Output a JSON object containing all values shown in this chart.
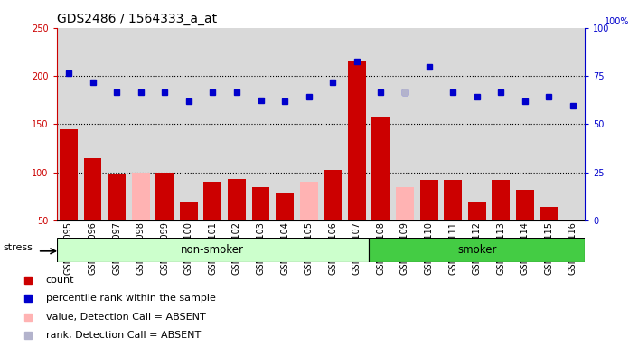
{
  "title": "GDS2486 / 1564333_a_at",
  "samples": [
    "GSM101095",
    "GSM101096",
    "GSM101097",
    "GSM101098",
    "GSM101099",
    "GSM101100",
    "GSM101101",
    "GSM101102",
    "GSM101103",
    "GSM101104",
    "GSM101105",
    "GSM101106",
    "GSM101107",
    "GSM101108",
    "GSM101109",
    "GSM101110",
    "GSM101111",
    "GSM101112",
    "GSM101113",
    "GSM101114",
    "GSM101115",
    "GSM101116"
  ],
  "count_values": [
    145,
    115,
    98,
    null,
    100,
    70,
    90,
    93,
    85,
    78,
    null,
    102,
    215,
    158,
    null,
    92,
    92,
    70,
    92,
    82,
    64,
    null
  ],
  "count_absent": [
    null,
    null,
    null,
    100,
    null,
    null,
    null,
    null,
    null,
    null,
    90,
    null,
    null,
    null,
    85,
    null,
    null,
    null,
    null,
    null,
    null,
    null
  ],
  "percentile_values": [
    203,
    193,
    183,
    183,
    183,
    174,
    183,
    183,
    175,
    174,
    178,
    193,
    215,
    183,
    183,
    209,
    183,
    178,
    183,
    174,
    178,
    169
  ],
  "percentile_absent": [
    null,
    null,
    null,
    null,
    null,
    null,
    null,
    null,
    null,
    null,
    null,
    null,
    null,
    null,
    183,
    null,
    null,
    null,
    null,
    null,
    null,
    null
  ],
  "non_smoker_count": 13,
  "smoker_count": 9,
  "left_ylim": [
    50,
    250
  ],
  "left_yticks": [
    50,
    100,
    150,
    200,
    250
  ],
  "right_yticks": [
    0,
    25,
    50,
    75,
    100
  ],
  "hlines": [
    100,
    150,
    200
  ],
  "bar_color": "#cc0000",
  "bar_absent_color": "#ffb3b3",
  "dot_color": "#0000cc",
  "dot_absent_color": "#b3b3cc",
  "bg_color": "#d9d9d9",
  "plot_bg": "#ffffff",
  "non_smoker_color": "#ccffcc",
  "smoker_color": "#44cc44",
  "stress_label": "stress",
  "non_smoker_label": "non-smoker",
  "smoker_label": "smoker",
  "title_fontsize": 10,
  "tick_fontsize": 7,
  "label_fontsize": 8
}
